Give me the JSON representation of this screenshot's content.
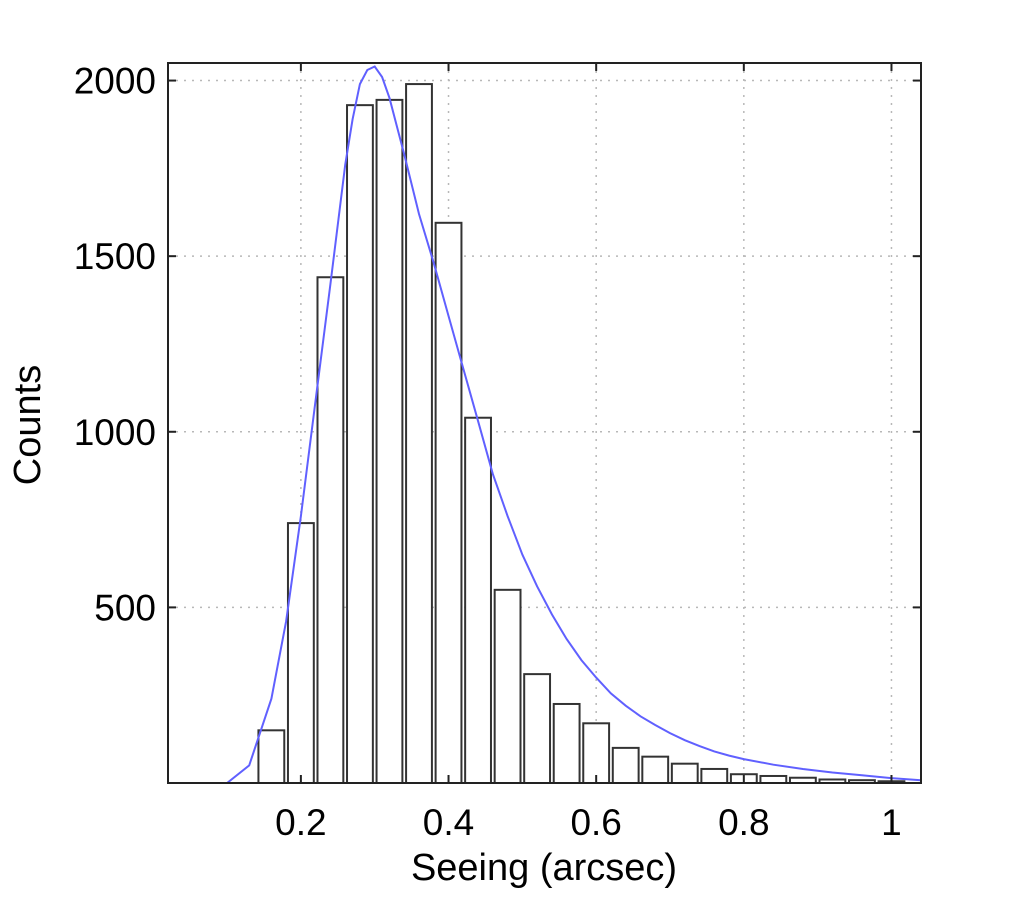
{
  "chart_data": {
    "type": "bar",
    "xlabel": "Seeing (arcsec)",
    "ylabel": "Counts",
    "xlim": [
      0.02,
      1.04
    ],
    "ylim": [
      0,
      2050
    ],
    "grid": true,
    "grid_style": "dotted",
    "x_ticks": [
      0.2,
      0.4,
      0.6,
      0.8,
      1.0
    ],
    "x_tick_labels": [
      "0.2",
      "0.4",
      "0.6",
      "0.8",
      "1"
    ],
    "y_ticks": [
      500,
      1000,
      1500,
      2000
    ],
    "y_tick_labels": [
      "500",
      "1000",
      "1500",
      "2000"
    ],
    "bar_width": 0.035,
    "bar_color": "#ffffff",
    "bar_edge_color": "#333333",
    "bars": {
      "x": [
        0.16,
        0.2,
        0.24,
        0.28,
        0.32,
        0.36,
        0.4,
        0.44,
        0.48,
        0.52,
        0.56,
        0.6,
        0.64,
        0.68,
        0.72,
        0.76,
        0.8,
        0.84,
        0.88,
        0.92,
        0.96,
        1.0
      ],
      "values": [
        150,
        740,
        1440,
        1930,
        1945,
        1990,
        1595,
        1040,
        550,
        310,
        225,
        170,
        100,
        75,
        55,
        40,
        25,
        20,
        15,
        10,
        8,
        5
      ]
    },
    "fit_curve": {
      "color": "#6060ff",
      "x": [
        0.06,
        0.1,
        0.13,
        0.16,
        0.18,
        0.2,
        0.22,
        0.24,
        0.26,
        0.27,
        0.28,
        0.29,
        0.3,
        0.31,
        0.32,
        0.34,
        0.36,
        0.38,
        0.4,
        0.42,
        0.44,
        0.46,
        0.48,
        0.5,
        0.52,
        0.54,
        0.56,
        0.58,
        0.6,
        0.62,
        0.64,
        0.66,
        0.68,
        0.7,
        0.72,
        0.74,
        0.76,
        0.78,
        0.8,
        0.84,
        0.88,
        0.92,
        0.96,
        1.0,
        1.04
      ],
      "y": [
        0,
        0,
        50,
        240,
        460,
        760,
        1090,
        1420,
        1760,
        1890,
        1990,
        2030,
        2040,
        2010,
        1950,
        1790,
        1620,
        1480,
        1330,
        1180,
        1030,
        880,
        760,
        650,
        560,
        480,
        410,
        350,
        300,
        255,
        220,
        190,
        165,
        142,
        122,
        105,
        90,
        78,
        68,
        52,
        40,
        30,
        22,
        14,
        8
      ]
    }
  }
}
